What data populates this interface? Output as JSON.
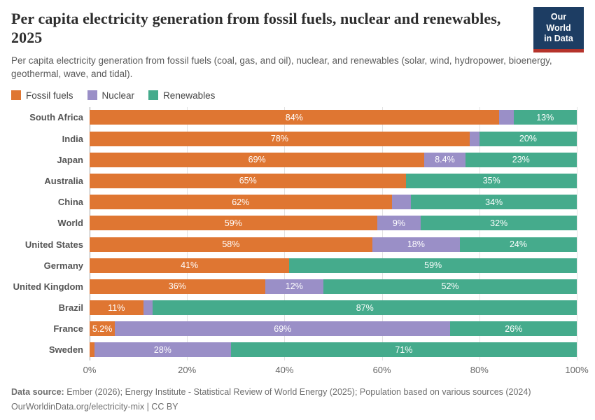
{
  "header": {
    "title": "Per capita electricity generation from fossil fuels, nuclear and renewables, 2025",
    "subtitle": "Per capita electricity generation from fossil fuels (coal, gas, and oil), nuclear, and renewables (solar, wind, hydropower, bioenergy, geothermal, wave, and tidal).",
    "logo": {
      "line1": "Our World",
      "line2": "in Data"
    }
  },
  "colors": {
    "fossil": "#df7632",
    "nuclear": "#9a8fc7",
    "renewables": "#45ab8c",
    "logo_navy": "#1d3d63",
    "logo_red": "#b5332b"
  },
  "chart_data": {
    "type": "bar",
    "stacked": true,
    "orientation": "horizontal",
    "unit": "%",
    "xlim": [
      0,
      100
    ],
    "grid": true,
    "legend_position": "top",
    "series_names": [
      "Fossil fuels",
      "Nuclear",
      "Renewables"
    ],
    "series_colors": [
      "#df7632",
      "#9a8fc7",
      "#45ab8c"
    ],
    "categories": [
      "South Africa",
      "India",
      "Japan",
      "Australia",
      "China",
      "World",
      "United States",
      "Germany",
      "United Kingdom",
      "Brazil",
      "France",
      "Sweden"
    ],
    "rows": [
      {
        "label": "South Africa",
        "values": [
          84,
          3,
          13
        ],
        "value_labels": [
          "84%",
          "",
          "13%"
        ]
      },
      {
        "label": "India",
        "values": [
          78,
          2,
          20
        ],
        "value_labels": [
          "78%",
          "",
          "20%"
        ]
      },
      {
        "label": "Japan",
        "values": [
          69,
          8.4,
          23
        ],
        "value_labels": [
          "69%",
          "8.4%",
          "23%"
        ]
      },
      {
        "label": "Australia",
        "values": [
          65,
          0,
          35
        ],
        "value_labels": [
          "65%",
          "",
          "35%"
        ]
      },
      {
        "label": "China",
        "values": [
          62,
          4,
          34
        ],
        "value_labels": [
          "62%",
          "",
          "34%"
        ]
      },
      {
        "label": "World",
        "values": [
          59,
          9,
          32
        ],
        "value_labels": [
          "59%",
          "9%",
          "32%"
        ]
      },
      {
        "label": "United States",
        "values": [
          58,
          18,
          24
        ],
        "value_labels": [
          "58%",
          "18%",
          "24%"
        ]
      },
      {
        "label": "Germany",
        "values": [
          41,
          0,
          59
        ],
        "value_labels": [
          "41%",
          "",
          "59%"
        ]
      },
      {
        "label": "United Kingdom",
        "values": [
          36,
          12,
          52
        ],
        "value_labels": [
          "36%",
          "12%",
          "52%"
        ]
      },
      {
        "label": "Brazil",
        "values": [
          11,
          2,
          87
        ],
        "value_labels": [
          "11%",
          "",
          "87%"
        ]
      },
      {
        "label": "France",
        "values": [
          5.2,
          69,
          26
        ],
        "value_labels": [
          "5.2%",
          "69%",
          "26%"
        ]
      },
      {
        "label": "Sweden",
        "values": [
          1,
          28,
          71
        ],
        "value_labels": [
          "",
          "28%",
          "71%"
        ]
      }
    ],
    "x_ticks": [
      {
        "value": 0,
        "label": "0%"
      },
      {
        "value": 20,
        "label": "20%"
      },
      {
        "value": 40,
        "label": "40%"
      },
      {
        "value": 60,
        "label": "60%"
      },
      {
        "value": 80,
        "label": "80%"
      },
      {
        "value": 100,
        "label": "100%"
      }
    ]
  },
  "footer": {
    "datasource_label": "Data source:",
    "datasource_text": " Ember (2026); Energy Institute - Statistical Review of World Energy (2025); Population based on various sources (2024)",
    "link_line": "OurWorldinData.org/electricity-mix | CC BY"
  }
}
